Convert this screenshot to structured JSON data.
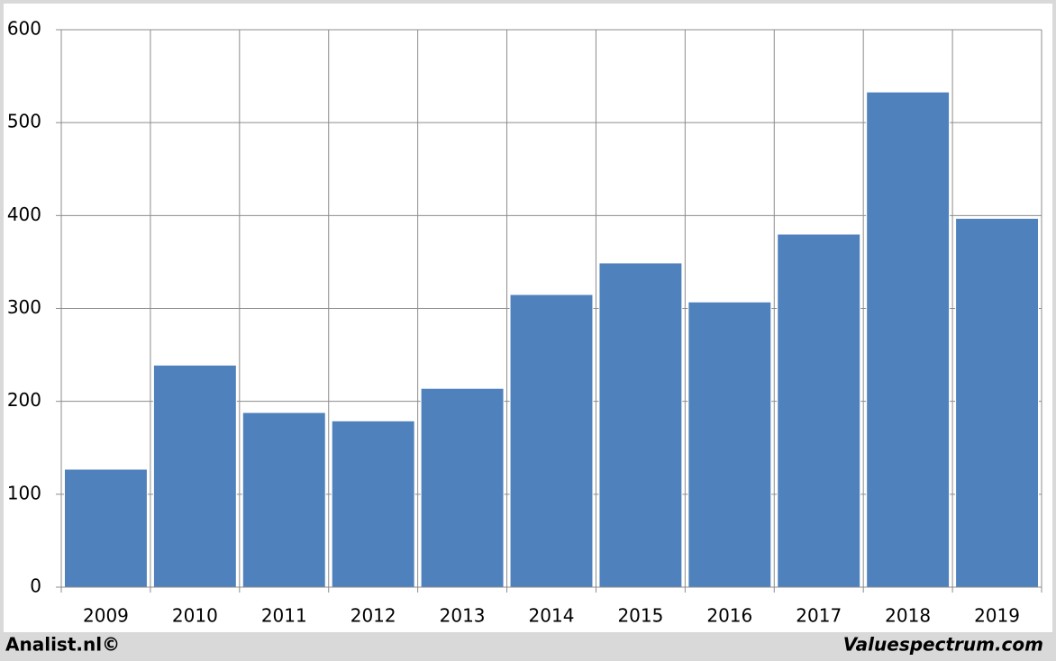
{
  "chart_data": {
    "type": "bar",
    "categories": [
      "2009",
      "2010",
      "2011",
      "2012",
      "2013",
      "2014",
      "2015",
      "2016",
      "2017",
      "2018",
      "2019"
    ],
    "values": [
      127,
      239,
      188,
      179,
      214,
      315,
      349,
      307,
      380,
      533,
      397
    ],
    "color": "#4f81bd",
    "ylim": [
      0,
      600
    ],
    "yticks": [
      0,
      100,
      200,
      300,
      400,
      500,
      600
    ],
    "grid": true
  },
  "footer": {
    "left": "Analist.nl©",
    "right": "Valuespectrum.com"
  }
}
